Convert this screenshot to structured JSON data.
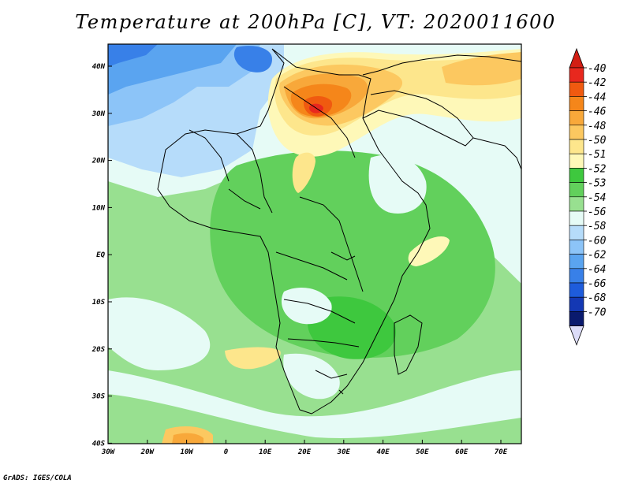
{
  "title": "Temperature at 200hPa [C], VT: 2020011600",
  "credit": "GrADS: IGES/COLA",
  "lon_ticks": [
    "30W",
    "20W",
    "10W",
    "0",
    "10E",
    "20E",
    "30E",
    "40E",
    "50E",
    "60E",
    "70E"
  ],
  "lat_ticks": [
    "40N",
    "30N",
    "20N",
    "10N",
    "EQ",
    "10S",
    "20S",
    "30S",
    "40S"
  ],
  "colorbar": {
    "labels": [
      "-40",
      "-42",
      "-44",
      "-46",
      "-48",
      "-50",
      "-51",
      "-52",
      "-53",
      "-54",
      "-56",
      "-58",
      "-60",
      "-62",
      "-64",
      "-66",
      "-68",
      "-70"
    ],
    "colors": [
      "#e8281e",
      "#f05a10",
      "#f5861a",
      "#f8a83a",
      "#fcc860",
      "#fde68c",
      "#fef8b8",
      "#3ec83e",
      "#62d05c",
      "#98e090",
      "#e6fbf6",
      "#b6dcfa",
      "#8cc4f8",
      "#5aa4f0",
      "#3880e8",
      "#1e5cdc",
      "#1438b4",
      "#0a1a6e"
    ],
    "top_color": "#d21e14",
    "bottom_color": "#dcdcf8"
  },
  "colors": {
    "ocean_base": "#a6e89c",
    "warm_core": "#e8281e"
  }
}
